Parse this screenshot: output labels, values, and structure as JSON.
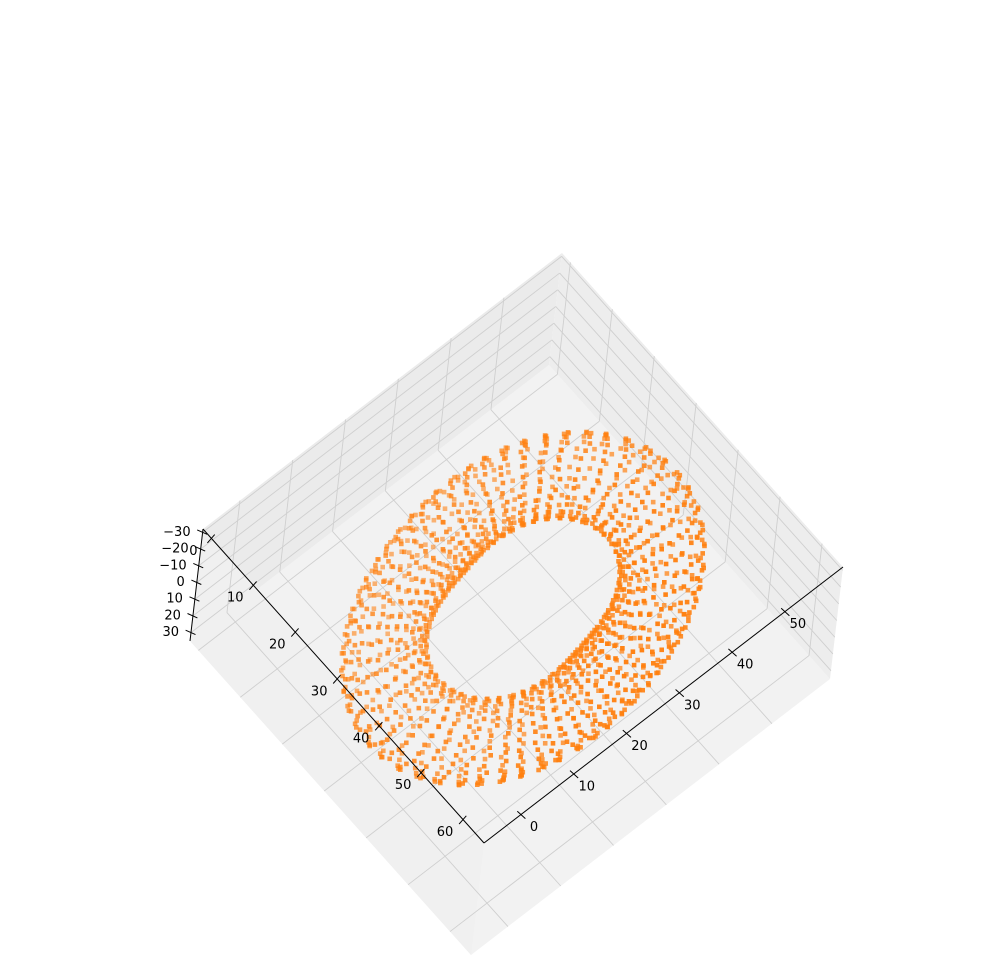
{
  "chart_data": {
    "type": "scatter",
    "projection": "3d",
    "title": "",
    "xlabel": "",
    "ylabel": "",
    "zlabel": "",
    "xlim": [
      -7,
      61
    ],
    "ylim": [
      -2,
      65
    ],
    "zlim": [
      -32,
      35
    ],
    "x_ticks": [
      0,
      10,
      20,
      30,
      40,
      50
    ],
    "y_ticks": [
      0,
      10,
      20,
      30,
      40,
      50,
      60
    ],
    "z_ticks": [
      -30,
      -20,
      -10,
      0,
      10,
      20,
      30
    ],
    "x_tick_labels": [
      "0",
      "10",
      "20",
      "30",
      "40",
      "50"
    ],
    "y_tick_labels": [
      "0",
      "10",
      "20",
      "30",
      "40",
      "50",
      "60"
    ],
    "z_tick_labels": [
      "−30",
      "−20",
      "−10",
      "0",
      "10",
      "20",
      "30"
    ],
    "grid": true,
    "legend": "none",
    "marker": "square",
    "color": "#ff7f0e",
    "series": [
      {
        "description": "closed tube / surface point cloud",
        "shape": "torus-like ring",
        "center": [
          27,
          33,
          0
        ],
        "ring_radius": 22,
        "tube_radius": 7,
        "approx_points": 1500
      }
    ]
  }
}
